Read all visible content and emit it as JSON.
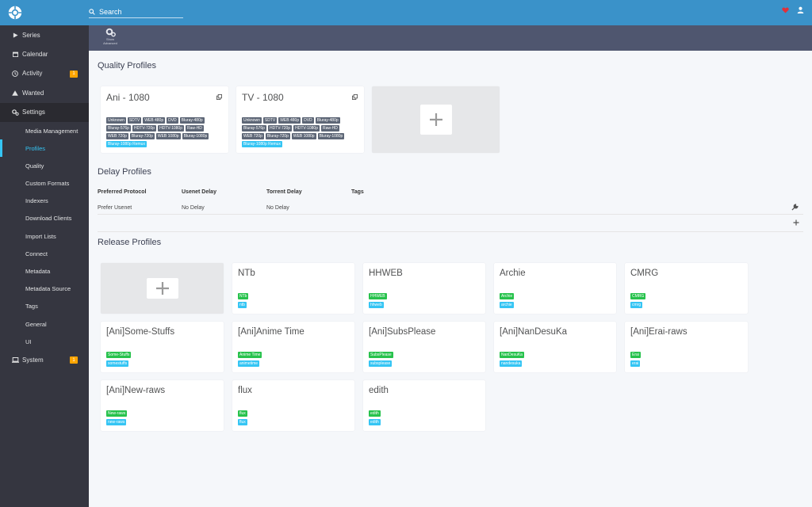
{
  "header": {
    "search_placeholder": "Search"
  },
  "sidebar": {
    "items": [
      {
        "label": "Series"
      },
      {
        "label": "Calendar"
      },
      {
        "label": "Activity",
        "badge": "1"
      },
      {
        "label": "Wanted"
      },
      {
        "label": "Settings"
      }
    ],
    "settings_sub": [
      "Media Management",
      "Profiles",
      "Quality",
      "Custom Formats",
      "Indexers",
      "Download Clients",
      "Import Lists",
      "Connect",
      "Metadata",
      "Metadata Source",
      "Tags",
      "General",
      "UI"
    ],
    "system": {
      "label": "System",
      "badge": "1"
    }
  },
  "toolbar": {
    "show_advanced_line1": "Show",
    "show_advanced_line2": "Advanced"
  },
  "quality_profiles": {
    "title": "Quality Profiles",
    "cards": [
      {
        "name": "Ani - 1080",
        "qualities": [
          "Unknown",
          "SDTV",
          "WEB 480p",
          "DVD",
          "Bluray-480p",
          "Bluray-576p",
          "HDTV-720p",
          "HDTV-1080p",
          "Raw-HD",
          "WEB 720p",
          "Bluray-720p",
          "WEB 1080p",
          "Bluray-1080p"
        ],
        "cutoff": "Bluray-1080p Remux"
      },
      {
        "name": "TV - 1080",
        "qualities": [
          "Unknown",
          "SDTV",
          "WEB 480p",
          "DVD",
          "Bluray-480p",
          "Bluray-576p",
          "HDTV-720p",
          "HDTV-1080p",
          "Raw-HD",
          "WEB 720p",
          "Bluray-720p",
          "WEB 1080p",
          "Bluray-1080p"
        ],
        "cutoff": "Bluray-1080p Remux"
      }
    ]
  },
  "delay_profiles": {
    "title": "Delay Profiles",
    "headers": {
      "protocol": "Preferred Protocol",
      "usenet": "Usenet Delay",
      "torrent": "Torrent Delay",
      "tags": "Tags"
    },
    "rows": [
      {
        "protocol": "Prefer Usenet",
        "usenet": "No Delay",
        "torrent": "No Delay",
        "tags": ""
      }
    ]
  },
  "release_profiles": {
    "title": "Release Profiles",
    "cards": [
      {
        "name": "NTb",
        "required": "NTb",
        "tag": "ntb"
      },
      {
        "name": "HHWEB",
        "required": "HHWEB",
        "tag": "hhweb"
      },
      {
        "name": "Archie",
        "required": "Archie",
        "tag": "archie"
      },
      {
        "name": "CMRG",
        "required": "CMRG",
        "tag": "cmrg"
      },
      {
        "name": "[Ani]Some-Stuffs",
        "required": "Some-Stuffs",
        "tag": "somestuffs"
      },
      {
        "name": "[Ani]Anime Time",
        "required": "Anime Time",
        "tag": "animetime"
      },
      {
        "name": "[Ani]SubsPlease",
        "required": "SubsPlease",
        "tag": "subsplease"
      },
      {
        "name": "[Ani]NanDesuKa",
        "required": "NanDesuKa",
        "tag": "nandesuka"
      },
      {
        "name": "[Ani]Erai-raws",
        "required": "Erai",
        "tag": "erai"
      },
      {
        "name": "[Ani]New-raws",
        "required": "New-raws",
        "tag": "new-raws"
      },
      {
        "name": "flux",
        "required": "flux",
        "tag": "flux"
      },
      {
        "name": "edith",
        "required": "edith",
        "tag": "edith"
      }
    ]
  },
  "colors": {
    "header": "#3a92c9",
    "sidebar": "#353640",
    "accent": "#35c5f4",
    "required_tag": "#27c24c",
    "badge": "#ffa500"
  }
}
